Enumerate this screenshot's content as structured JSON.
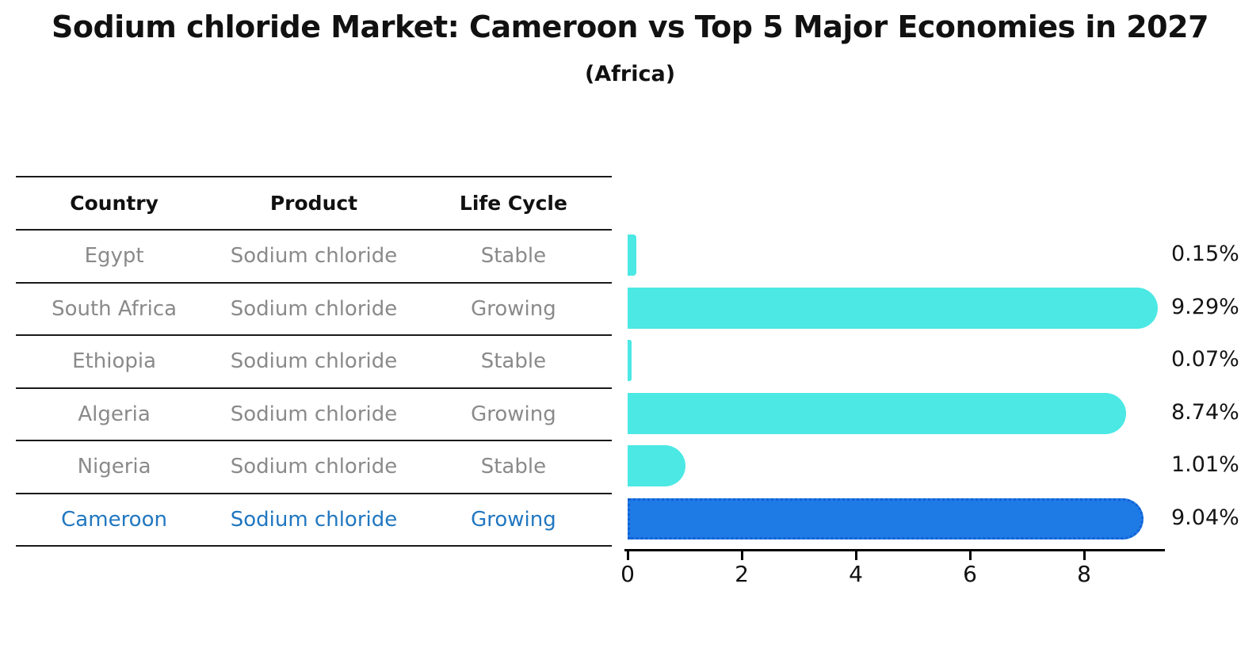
{
  "title": "Sodium chloride Market: Cameroon vs Top 5 Major Economies in 2027",
  "subtitle": "(Africa)",
  "table": {
    "headers": [
      "Country",
      "Product",
      "Life Cycle"
    ],
    "rows": [
      {
        "country": "Egypt",
        "product": "Sodium chloride",
        "life_cycle": "Stable",
        "highlight": false
      },
      {
        "country": "South Africa",
        "product": "Sodium chloride",
        "life_cycle": "Growing",
        "highlight": false
      },
      {
        "country": "Ethiopia",
        "product": "Sodium chloride",
        "life_cycle": "Stable",
        "highlight": false
      },
      {
        "country": "Algeria",
        "product": "Sodium chloride",
        "life_cycle": "Growing",
        "highlight": false
      },
      {
        "country": "Nigeria",
        "product": "Sodium chloride",
        "life_cycle": "Stable",
        "highlight": false
      },
      {
        "country": "Cameroon",
        "product": "Sodium chloride",
        "life_cycle": "Growing",
        "highlight": true
      }
    ]
  },
  "chart_data": {
    "type": "bar",
    "orientation": "horizontal",
    "title": "Sodium chloride Market: Cameroon vs Top 5 Major Economies in 2027",
    "subtitle": "(Africa)",
    "categories": [
      "Egypt",
      "South Africa",
      "Ethiopia",
      "Algeria",
      "Nigeria",
      "Cameroon"
    ],
    "values": [
      0.15,
      9.29,
      0.07,
      8.74,
      1.01,
      9.04
    ],
    "value_labels": [
      "0.15%",
      "9.29%",
      "0.07%",
      "8.74%",
      "1.01%",
      "9.04%"
    ],
    "xticks": [
      0,
      2,
      4,
      6,
      8
    ],
    "xlim": [
      0,
      9.45
    ],
    "grid": false,
    "legend": "none",
    "bar_color": "#4BE8E4",
    "highlight_color": "#1E7AE5",
    "highlight_edge_color": "#1261D6",
    "highlight_index": 5
  },
  "colors": {
    "row_text": "#8a8a8a",
    "highlight_text": "#2177c0",
    "header_text": "#111111",
    "axis": "#000000",
    "background": "#ffffff"
  }
}
